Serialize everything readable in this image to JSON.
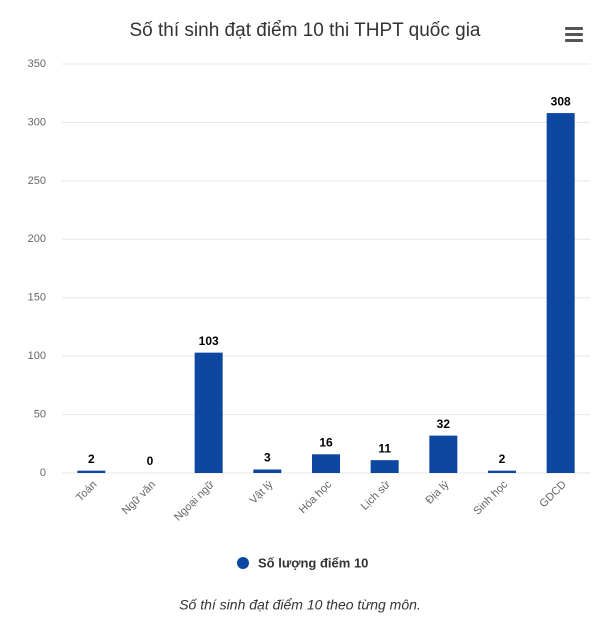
{
  "chart_data": {
    "type": "bar",
    "title": "Số thí sinh đạt điểm 10 thi THPT quốc gia",
    "categories": [
      "Toán",
      "Ngữ văn",
      "Ngoại ngữ",
      "Vật lý",
      "Hóa học",
      "Lịch sử",
      "Địa lý",
      "Sinh học",
      "GDCD"
    ],
    "series": [
      {
        "name": "Số lượng điểm 10",
        "color": "#0d47a1",
        "values": [
          2,
          0,
          103,
          3,
          16,
          11,
          32,
          2,
          308
        ]
      }
    ],
    "ylim": [
      0,
      350
    ],
    "yticks": [
      0,
      50,
      100,
      150,
      200,
      250,
      300,
      350
    ],
    "grid": true,
    "data_labels": true,
    "caption": "Số thí sinh đạt điểm 10 theo từng môn."
  }
}
